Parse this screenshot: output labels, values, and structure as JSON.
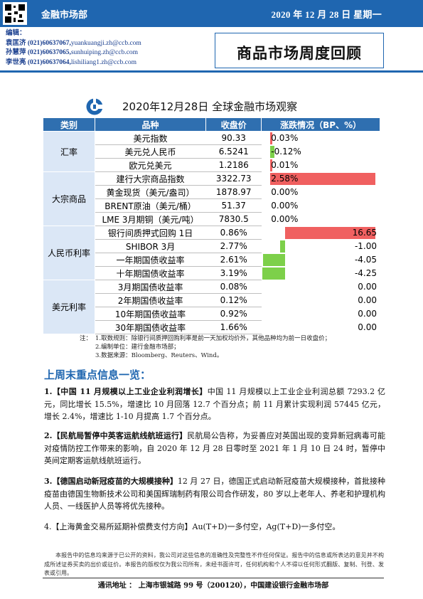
{
  "header": {
    "department": "金融市场部",
    "date": "2020 年 12 月 28 日  星期一"
  },
  "editors": {
    "label": "编辑：",
    "list": [
      {
        "name": "袁匡济",
        "phone": "(021)60637067,",
        "email": "yuankuangji.zh@ccb.com"
      },
      {
        "name": "孙慧萍",
        "phone": "(021)60637065,",
        "email": "sunhuiping.zh@ccb.com"
      },
      {
        "name": "李世亮",
        "phone": "(021)60637064,",
        "email": "lishiliang1.zh@ccb.com"
      }
    ]
  },
  "report_title": "商品市场周度回顾",
  "table_title": "2020年12月28日  全球金融市场观察",
  "colors": {
    "brand": "#1f66b0",
    "header": "#2f6fb0",
    "pos": "#f06060",
    "neg": "#7dd04a",
    "catbg": "#dbe7f6"
  },
  "market_table": {
    "headers": [
      "类别",
      "品种",
      "收盘价",
      "涨跌情况（BP、%）"
    ],
    "groups": [
      {
        "category": "汇率",
        "rows": [
          {
            "name": "美元指数",
            "close": "90.33",
            "change_text": "0.03%",
            "change": 0.03,
            "unit": "pct"
          },
          {
            "name": "美元兑人民币",
            "close": "6.5241",
            "change_text": "-0.12%",
            "change": -0.12,
            "unit": "pct"
          },
          {
            "name": "欧元兑美元",
            "close": "1.2186",
            "change_text": "0.01%",
            "change": 0.01,
            "unit": "pct"
          }
        ]
      },
      {
        "category": "大宗商品",
        "rows": [
          {
            "name": "建行大宗商品指数",
            "close": "3322.73",
            "change_text": "2.58%",
            "change": 2.58,
            "unit": "pct"
          },
          {
            "name": "黄金现货（美元/盎司）",
            "close": "1878.97",
            "change_text": "0.00%",
            "change": 0,
            "unit": "pct"
          },
          {
            "name": "BRENT原油（美元/桶）",
            "close": "51.37",
            "change_text": "0.00%",
            "change": 0,
            "unit": "pct"
          },
          {
            "name": "LME 3月期铜（美元/吨）",
            "close": "7830.5",
            "change_text": "0.00%",
            "change": 0,
            "unit": "pct"
          }
        ]
      },
      {
        "category": "人民币利率",
        "rows": [
          {
            "name": "银行间质押式回购 1日",
            "close": "0.86%",
            "change_text": "16.65",
            "change": 16.65,
            "unit": "bp"
          },
          {
            "name": "SHIBOR 3月",
            "close": "2.77%",
            "change_text": "-1.00",
            "change": -1.0,
            "unit": "bp"
          },
          {
            "name": "一年期国债收益率",
            "close": "2.61%",
            "change_text": "-4.05",
            "change": -4.05,
            "unit": "bp"
          },
          {
            "name": "十年期国债收益率",
            "close": "3.19%",
            "change_text": "-4.25",
            "change": -4.25,
            "unit": "bp"
          }
        ]
      },
      {
        "category": "美元利率",
        "rows": [
          {
            "name": "3月期国债收益率",
            "close": "0.08%",
            "change_text": "0.00",
            "change": 0,
            "unit": "bp"
          },
          {
            "name": "2年期国债收益率",
            "close": "0.12%",
            "change_text": "0.00",
            "change": 0,
            "unit": "bp"
          },
          {
            "name": "10年期国债收益率",
            "close": "0.92%",
            "change_text": "0.00",
            "change": 0,
            "unit": "bp"
          },
          {
            "name": "30年期国债收益率",
            "close": "1.66%",
            "change_text": "0.00",
            "change": 0,
            "unit": "bp"
          }
        ]
      }
    ]
  },
  "notes": {
    "label": "注：",
    "items": [
      "1.取数规则：除银行间质押回购利率是前一天加权均价外，其他品种均为前一日收盘价；",
      "2.编制单位：建行金融市场部；",
      "3.数据来源：Bloomberg、Reuters、Wind。"
    ]
  },
  "section_title": "上周末重点信息一览：",
  "news": [
    {
      "num": "1.",
      "headline": "【中国 11 月规模以上工业企业利润增长】",
      "body": "中国 11 月规模以上工业企业利润总额 7293.2 亿元，同比增长 15.5%，增速比 10 月回落 12.7 个百分点；前 11 月累计实现利润 57445 亿元，增长 2.4%，增速比 1-10 月提高 1.7 个百分点。"
    },
    {
      "num": "2.",
      "headline": "【民航局暂停中英客运航线航班运行】",
      "body": "民航局公告称，为妥善应对英国出现的变异新冠病毒可能对疫情防控工作带来的影响，自 2020 年 12 月 28 日零时至 2021 年 1 月 10 日 24 时，暂停中英间定期客运航线航班运行。"
    },
    {
      "num": "3.",
      "headline": "【德国启动新冠疫苗的大规模接种】",
      "body": "12 月 27 日，德国正式启动新冠疫苗大规模接种，首批接种疫苗由德国生物新技术公司和美国辉瑞制药有限公司合作研发，80 岁以上老年人、养老和护理机构人员、一线医护人员等将优先接种。"
    },
    {
      "num": "4.",
      "headline": "【上海黄金交易所延期补偿费支付方向】",
      "body": "Au(T+D)一多付空，Ag(T+D)一多付空。"
    }
  ],
  "disclaimer": "本报告中的信息均来源于已公开的资料，我公司对这些信息的准确性及完整性不作任何保证。报告中的信息或所表达的意见并不构成所述证券买卖的出价或征价。本报告的版权仅为我公司所有，未经书面许可，任何机构和个人不得以任何形式翻版、复制、刊登、发表或引用。",
  "footer": "通讯地址 ：  上海市银城路 99 号（200120），中国建设银行金融市场部"
}
